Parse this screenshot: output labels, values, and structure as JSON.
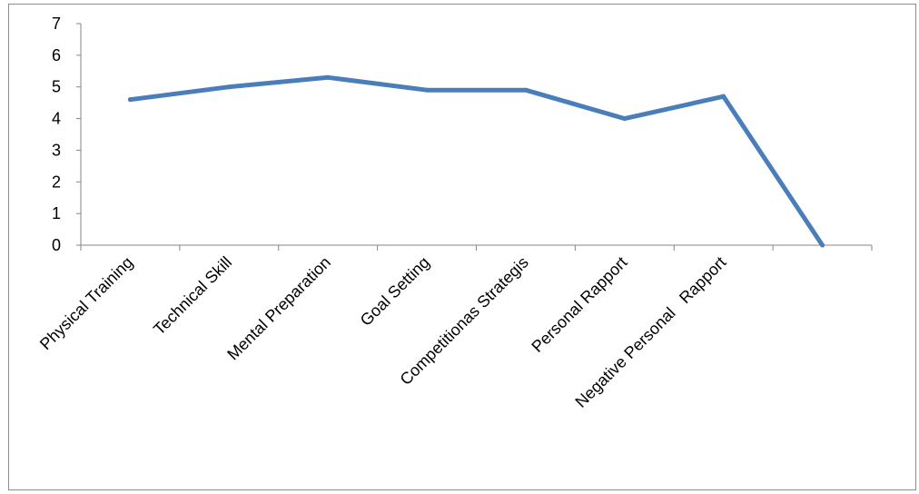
{
  "chart_data": {
    "type": "line",
    "title": "",
    "xlabel": "",
    "ylabel": "",
    "categories": [
      "Physical Training",
      "Technical Skill",
      "Mental Preparation",
      "Goal Setting",
      "Competitionas Strategis",
      "Personal Rapport",
      "Negative Personal   Rapport",
      ""
    ],
    "series": [
      {
        "values": [
          4.6,
          5.0,
          5.3,
          4.9,
          4.9,
          4.0,
          4.7,
          0
        ]
      }
    ],
    "ylim": [
      0,
      7
    ],
    "yticks": [
      0,
      1,
      2,
      3,
      4,
      5,
      6,
      7
    ],
    "grid": false,
    "legend": "none",
    "colors": {
      "line": "#4a7ebb",
      "axis": "#868686",
      "frame": "#8c8c8c"
    }
  }
}
